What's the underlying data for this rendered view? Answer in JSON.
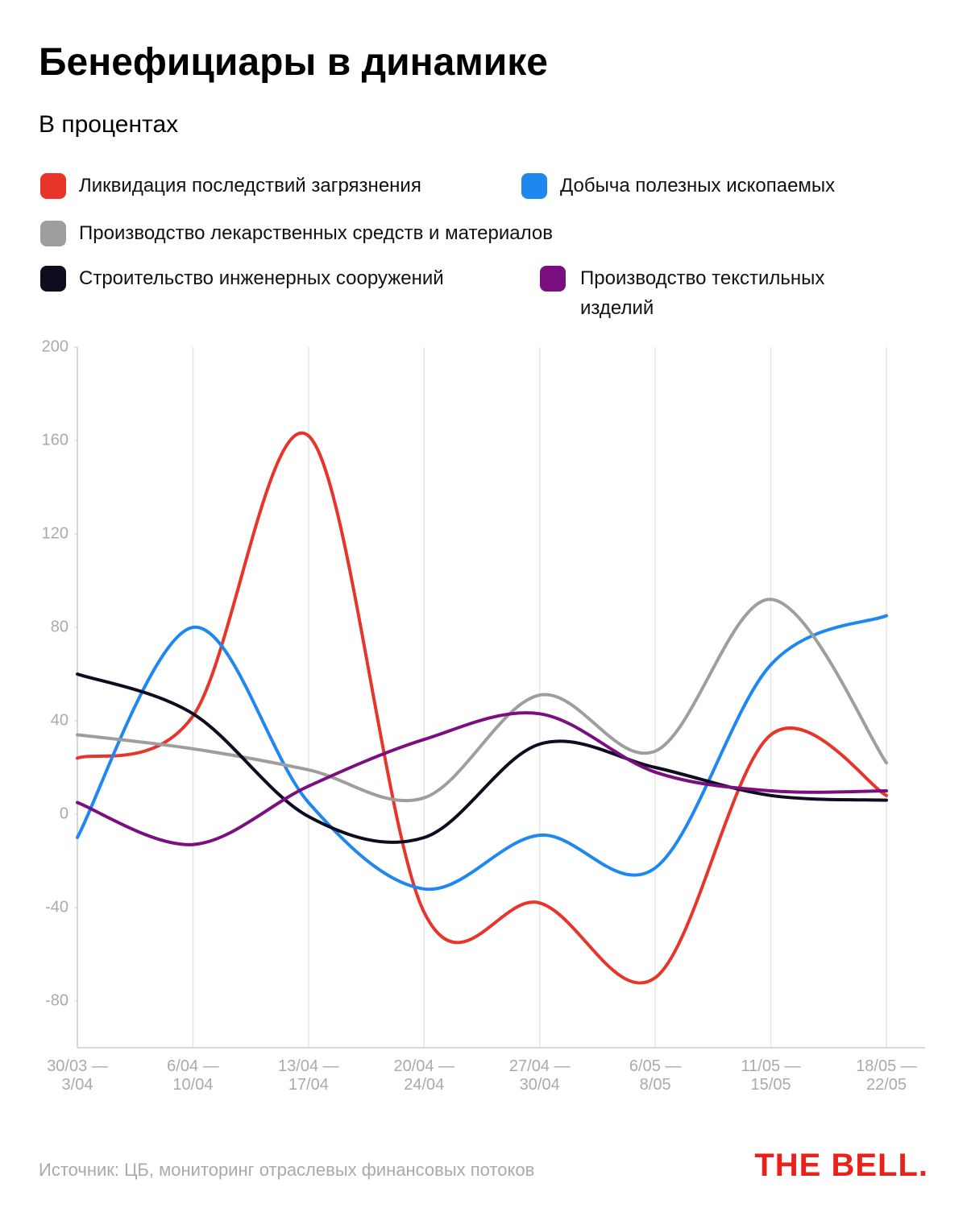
{
  "chart_data": {
    "type": "line",
    "title": "Бенефициары в динамике",
    "subtitle": "В процентах",
    "categories": [
      "30/03 — 3/04",
      "6/04 — 10/04",
      "13/04 — 17/04",
      "20/04 — 24/04",
      "27/04 — 30/04",
      "6/05 — 8/05",
      "11/05 — 15/05",
      "18/05 — 22/05"
    ],
    "series": [
      {
        "name": "Ликвидация последствий загрязнения",
        "color": "#e8352b",
        "values": [
          24,
          42,
          162,
          -42,
          -38,
          -70,
          34,
          8
        ]
      },
      {
        "name": "Добыча полезных ископаемых",
        "color": "#1e88f0",
        "values": [
          -10,
          80,
          5,
          -32,
          -9,
          -23,
          64,
          85
        ]
      },
      {
        "name": "Производство лекарственных средств и материалов",
        "color": "#9e9e9e",
        "values": [
          34,
          28,
          19,
          7,
          51,
          27,
          92,
          22
        ]
      },
      {
        "name": "Строительство инженерных сооружений",
        "color": "#0e0c1e",
        "values": [
          60,
          43,
          -1,
          -10,
          30,
          20,
          8,
          6
        ]
      },
      {
        "name": "Производство текстильных изделий",
        "color": "#7a1080",
        "values": [
          5,
          -13,
          12,
          32,
          43,
          18,
          10,
          10
        ]
      }
    ],
    "ylim": [
      -100,
      200
    ],
    "yticks": [
      -80,
      -40,
      0,
      40,
      80,
      120,
      160,
      200
    ],
    "grid": true
  },
  "footer": {
    "source": "Источник: ЦБ, мониторинг отраслевых финансовых потоков",
    "logo": "THE BELL."
  }
}
